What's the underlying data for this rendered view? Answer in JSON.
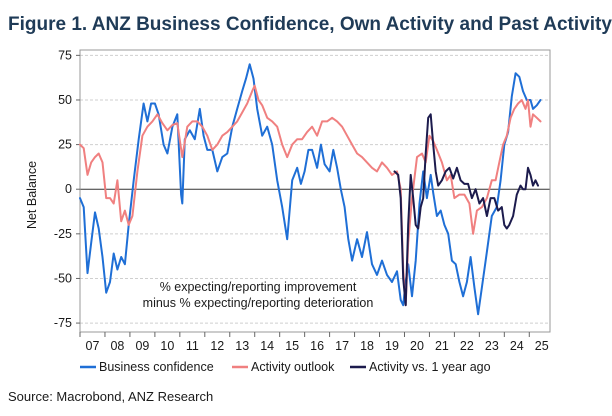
{
  "title": "Figure 1.  ANZ Business Confidence, Own Activity and Past Activity",
  "source": "Source: Macrobond, ANZ Research",
  "chart_data": {
    "type": "line",
    "ylabel": "Net Balance",
    "xlabel": "",
    "xlim": [
      2007.0,
      2025.83
    ],
    "ylim": [
      -80,
      78
    ],
    "yticks": [
      75,
      50,
      25,
      0,
      -25,
      -50,
      -75
    ],
    "xticks": [
      {
        "label": "07",
        "year": 2007
      },
      {
        "label": "08",
        "year": 2008
      },
      {
        "label": "09",
        "year": 2009
      },
      {
        "label": "10",
        "year": 2010
      },
      {
        "label": "11",
        "year": 2011
      },
      {
        "label": "12",
        "year": 2012
      },
      {
        "label": "13",
        "year": 2013
      },
      {
        "label": "14",
        "year": 2014
      },
      {
        "label": "15",
        "year": 2015
      },
      {
        "label": "16",
        "year": 2016
      },
      {
        "label": "17",
        "year": 2017
      },
      {
        "label": "18",
        "year": 2018
      },
      {
        "label": "19",
        "year": 2019
      },
      {
        "label": "20",
        "year": 2020
      },
      {
        "label": "21",
        "year": 2021
      },
      {
        "label": "22",
        "year": 2022
      },
      {
        "label": "23",
        "year": 2023
      },
      {
        "label": "24",
        "year": 2024
      },
      {
        "label": "25",
        "year": 2025
      }
    ],
    "annotation": [
      "% expecting/reporting improvement",
      "minus % expecting/reporting deterioration"
    ],
    "series": [
      {
        "name": "Business confidence",
        "color": "#1f6fd6",
        "points": [
          [
            2007.0,
            -5
          ],
          [
            2007.15,
            -10
          ],
          [
            2007.3,
            -47
          ],
          [
            2007.45,
            -30
          ],
          [
            2007.6,
            -13
          ],
          [
            2007.75,
            -22
          ],
          [
            2007.9,
            -38
          ],
          [
            2008.05,
            -58
          ],
          [
            2008.2,
            -52
          ],
          [
            2008.35,
            -36
          ],
          [
            2008.5,
            -45
          ],
          [
            2008.65,
            -38
          ],
          [
            2008.8,
            -42
          ],
          [
            2008.95,
            -20
          ],
          [
            2009.15,
            5
          ],
          [
            2009.35,
            28
          ],
          [
            2009.55,
            48
          ],
          [
            2009.7,
            38
          ],
          [
            2009.85,
            48
          ],
          [
            2010.0,
            48
          ],
          [
            2010.15,
            42
          ],
          [
            2010.35,
            25
          ],
          [
            2010.5,
            20
          ],
          [
            2010.7,
            35
          ],
          [
            2010.9,
            42
          ],
          [
            2011.05,
            -3
          ],
          [
            2011.1,
            -8
          ],
          [
            2011.2,
            28
          ],
          [
            2011.4,
            33
          ],
          [
            2011.6,
            28
          ],
          [
            2011.8,
            45
          ],
          [
            2011.95,
            30
          ],
          [
            2012.1,
            22
          ],
          [
            2012.3,
            22
          ],
          [
            2012.5,
            10
          ],
          [
            2012.7,
            18
          ],
          [
            2012.9,
            20
          ],
          [
            2013.1,
            35
          ],
          [
            2013.3,
            45
          ],
          [
            2013.5,
            55
          ],
          [
            2013.65,
            62
          ],
          [
            2013.8,
            70
          ],
          [
            2013.95,
            62
          ],
          [
            2014.1,
            45
          ],
          [
            2014.3,
            30
          ],
          [
            2014.5,
            35
          ],
          [
            2014.7,
            25
          ],
          [
            2014.9,
            5
          ],
          [
            2015.1,
            -10
          ],
          [
            2015.3,
            -28
          ],
          [
            2015.5,
            5
          ],
          [
            2015.7,
            12
          ],
          [
            2015.85,
            3
          ],
          [
            2016.0,
            10
          ],
          [
            2016.15,
            22
          ],
          [
            2016.3,
            22
          ],
          [
            2016.5,
            12
          ],
          [
            2016.65,
            25
          ],
          [
            2016.8,
            14
          ],
          [
            2017.0,
            10
          ],
          [
            2017.15,
            22
          ],
          [
            2017.3,
            12
          ],
          [
            2017.45,
            0
          ],
          [
            2017.6,
            -10
          ],
          [
            2017.75,
            -28
          ],
          [
            2017.9,
            -40
          ],
          [
            2018.1,
            -28
          ],
          [
            2018.3,
            -38
          ],
          [
            2018.5,
            -24
          ],
          [
            2018.7,
            -42
          ],
          [
            2018.9,
            -48
          ],
          [
            2019.1,
            -40
          ],
          [
            2019.3,
            -48
          ],
          [
            2019.5,
            -52
          ],
          [
            2019.7,
            -46
          ],
          [
            2019.85,
            -62
          ],
          [
            2019.95,
            -65
          ],
          [
            2020.05,
            -52
          ],
          [
            2020.15,
            -42
          ],
          [
            2020.3,
            -60
          ],
          [
            2020.45,
            -40
          ],
          [
            2020.6,
            -8
          ],
          [
            2020.75,
            10
          ],
          [
            2020.9,
            -5
          ],
          [
            2021.05,
            8
          ],
          [
            2021.15,
            -2
          ],
          [
            2021.3,
            -15
          ],
          [
            2021.45,
            -12
          ],
          [
            2021.6,
            -20
          ],
          [
            2021.75,
            -25
          ],
          [
            2021.9,
            -40
          ],
          [
            2022.05,
            -42
          ],
          [
            2022.2,
            -52
          ],
          [
            2022.35,
            -60
          ],
          [
            2022.5,
            -52
          ],
          [
            2022.65,
            -38
          ],
          [
            2022.8,
            -55
          ],
          [
            2022.95,
            -70
          ],
          [
            2023.1,
            -55
          ],
          [
            2023.3,
            -35
          ],
          [
            2023.5,
            -15
          ],
          [
            2023.7,
            -10
          ],
          [
            2023.85,
            5
          ],
          [
            2024.0,
            25
          ],
          [
            2024.15,
            32
          ],
          [
            2024.3,
            52
          ],
          [
            2024.45,
            65
          ],
          [
            2024.6,
            63
          ],
          [
            2024.75,
            55
          ],
          [
            2024.9,
            50
          ],
          [
            2025.05,
            50
          ],
          [
            2025.15,
            45
          ],
          [
            2025.3,
            47
          ],
          [
            2025.45,
            50
          ]
        ]
      },
      {
        "name": "Activity outlook",
        "color": "#f08080",
        "points": [
          [
            2007.0,
            25
          ],
          [
            2007.15,
            23
          ],
          [
            2007.3,
            8
          ],
          [
            2007.45,
            15
          ],
          [
            2007.6,
            18
          ],
          [
            2007.75,
            20
          ],
          [
            2007.9,
            15
          ],
          [
            2008.05,
            -5
          ],
          [
            2008.2,
            -5
          ],
          [
            2008.35,
            -8
          ],
          [
            2008.5,
            5
          ],
          [
            2008.65,
            -18
          ],
          [
            2008.8,
            -12
          ],
          [
            2008.95,
            -20
          ],
          [
            2009.1,
            -15
          ],
          [
            2009.3,
            10
          ],
          [
            2009.5,
            30
          ],
          [
            2009.7,
            35
          ],
          [
            2009.9,
            38
          ],
          [
            2010.1,
            42
          ],
          [
            2010.3,
            37
          ],
          [
            2010.5,
            33
          ],
          [
            2010.7,
            36
          ],
          [
            2010.9,
            37
          ],
          [
            2011.1,
            18
          ],
          [
            2011.3,
            35
          ],
          [
            2011.5,
            38
          ],
          [
            2011.7,
            38
          ],
          [
            2011.9,
            35
          ],
          [
            2012.1,
            30
          ],
          [
            2012.3,
            22
          ],
          [
            2012.5,
            25
          ],
          [
            2012.7,
            30
          ],
          [
            2012.9,
            32
          ],
          [
            2013.1,
            35
          ],
          [
            2013.3,
            38
          ],
          [
            2013.5,
            43
          ],
          [
            2013.7,
            48
          ],
          [
            2013.9,
            55
          ],
          [
            2014.0,
            58
          ],
          [
            2014.15,
            50
          ],
          [
            2014.3,
            47
          ],
          [
            2014.5,
            40
          ],
          [
            2014.7,
            38
          ],
          [
            2014.9,
            35
          ],
          [
            2015.1,
            25
          ],
          [
            2015.3,
            18
          ],
          [
            2015.5,
            25
          ],
          [
            2015.7,
            28
          ],
          [
            2015.9,
            28
          ],
          [
            2016.1,
            32
          ],
          [
            2016.3,
            35
          ],
          [
            2016.5,
            30
          ],
          [
            2016.7,
            38
          ],
          [
            2016.9,
            38
          ],
          [
            2017.1,
            40
          ],
          [
            2017.3,
            38
          ],
          [
            2017.5,
            35
          ],
          [
            2017.7,
            30
          ],
          [
            2017.9,
            25
          ],
          [
            2018.1,
            20
          ],
          [
            2018.3,
            18
          ],
          [
            2018.5,
            15
          ],
          [
            2018.7,
            12
          ],
          [
            2018.9,
            10
          ],
          [
            2019.1,
            15
          ],
          [
            2019.3,
            12
          ],
          [
            2019.5,
            8
          ],
          [
            2019.7,
            10
          ],
          [
            2019.85,
            0
          ],
          [
            2019.95,
            -45
          ],
          [
            2020.05,
            -65
          ],
          [
            2020.15,
            -30
          ],
          [
            2020.3,
            -5
          ],
          [
            2020.5,
            18
          ],
          [
            2020.7,
            20
          ],
          [
            2020.85,
            15
          ],
          [
            2021.0,
            30
          ],
          [
            2021.15,
            27
          ],
          [
            2021.3,
            22
          ],
          [
            2021.5,
            15
          ],
          [
            2021.7,
            5
          ],
          [
            2021.85,
            8
          ],
          [
            2022.0,
            -5
          ],
          [
            2022.2,
            -3
          ],
          [
            2022.4,
            -3
          ],
          [
            2022.6,
            -8
          ],
          [
            2022.75,
            -25
          ],
          [
            2022.9,
            -12
          ],
          [
            2023.1,
            -10
          ],
          [
            2023.3,
            -5
          ],
          [
            2023.5,
            5
          ],
          [
            2023.65,
            5
          ],
          [
            2023.8,
            15
          ],
          [
            2023.95,
            25
          ],
          [
            2024.1,
            30
          ],
          [
            2024.25,
            40
          ],
          [
            2024.4,
            45
          ],
          [
            2024.55,
            48
          ],
          [
            2024.7,
            50
          ],
          [
            2024.85,
            45
          ],
          [
            2024.95,
            50
          ],
          [
            2025.05,
            35
          ],
          [
            2025.15,
            42
          ],
          [
            2025.3,
            40
          ],
          [
            2025.45,
            38
          ]
        ]
      },
      {
        "name": "Activity vs. 1 year ago",
        "color": "#1c1b4d",
        "points": [
          [
            2019.6,
            10
          ],
          [
            2019.75,
            8
          ],
          [
            2019.85,
            -5
          ],
          [
            2019.95,
            -50
          ],
          [
            2020.05,
            -65
          ],
          [
            2020.15,
            -20
          ],
          [
            2020.25,
            8
          ],
          [
            2020.35,
            -5
          ],
          [
            2020.45,
            -20
          ],
          [
            2020.55,
            -22
          ],
          [
            2020.65,
            -10
          ],
          [
            2020.75,
            -5
          ],
          [
            2020.85,
            20
          ],
          [
            2020.95,
            40
          ],
          [
            2021.05,
            42
          ],
          [
            2021.15,
            25
          ],
          [
            2021.25,
            10
          ],
          [
            2021.35,
            2
          ],
          [
            2021.5,
            5
          ],
          [
            2021.65,
            10
          ],
          [
            2021.8,
            12
          ],
          [
            2021.95,
            6
          ],
          [
            2022.1,
            12
          ],
          [
            2022.25,
            5
          ],
          [
            2022.4,
            3
          ],
          [
            2022.55,
            3
          ],
          [
            2022.7,
            -5
          ],
          [
            2022.85,
            0
          ],
          [
            2023.0,
            -8
          ],
          [
            2023.15,
            -5
          ],
          [
            2023.3,
            -15
          ],
          [
            2023.45,
            -5
          ],
          [
            2023.6,
            -5
          ],
          [
            2023.75,
            -12
          ],
          [
            2023.9,
            -10
          ],
          [
            2024.0,
            -20
          ],
          [
            2024.1,
            -22
          ],
          [
            2024.2,
            -20
          ],
          [
            2024.35,
            -15
          ],
          [
            2024.5,
            -3
          ],
          [
            2024.65,
            2
          ],
          [
            2024.75,
            0
          ],
          [
            2024.85,
            0
          ],
          [
            2024.95,
            12
          ],
          [
            2025.05,
            8
          ],
          [
            2025.15,
            2
          ],
          [
            2025.25,
            5
          ],
          [
            2025.35,
            2
          ]
        ]
      }
    ]
  }
}
